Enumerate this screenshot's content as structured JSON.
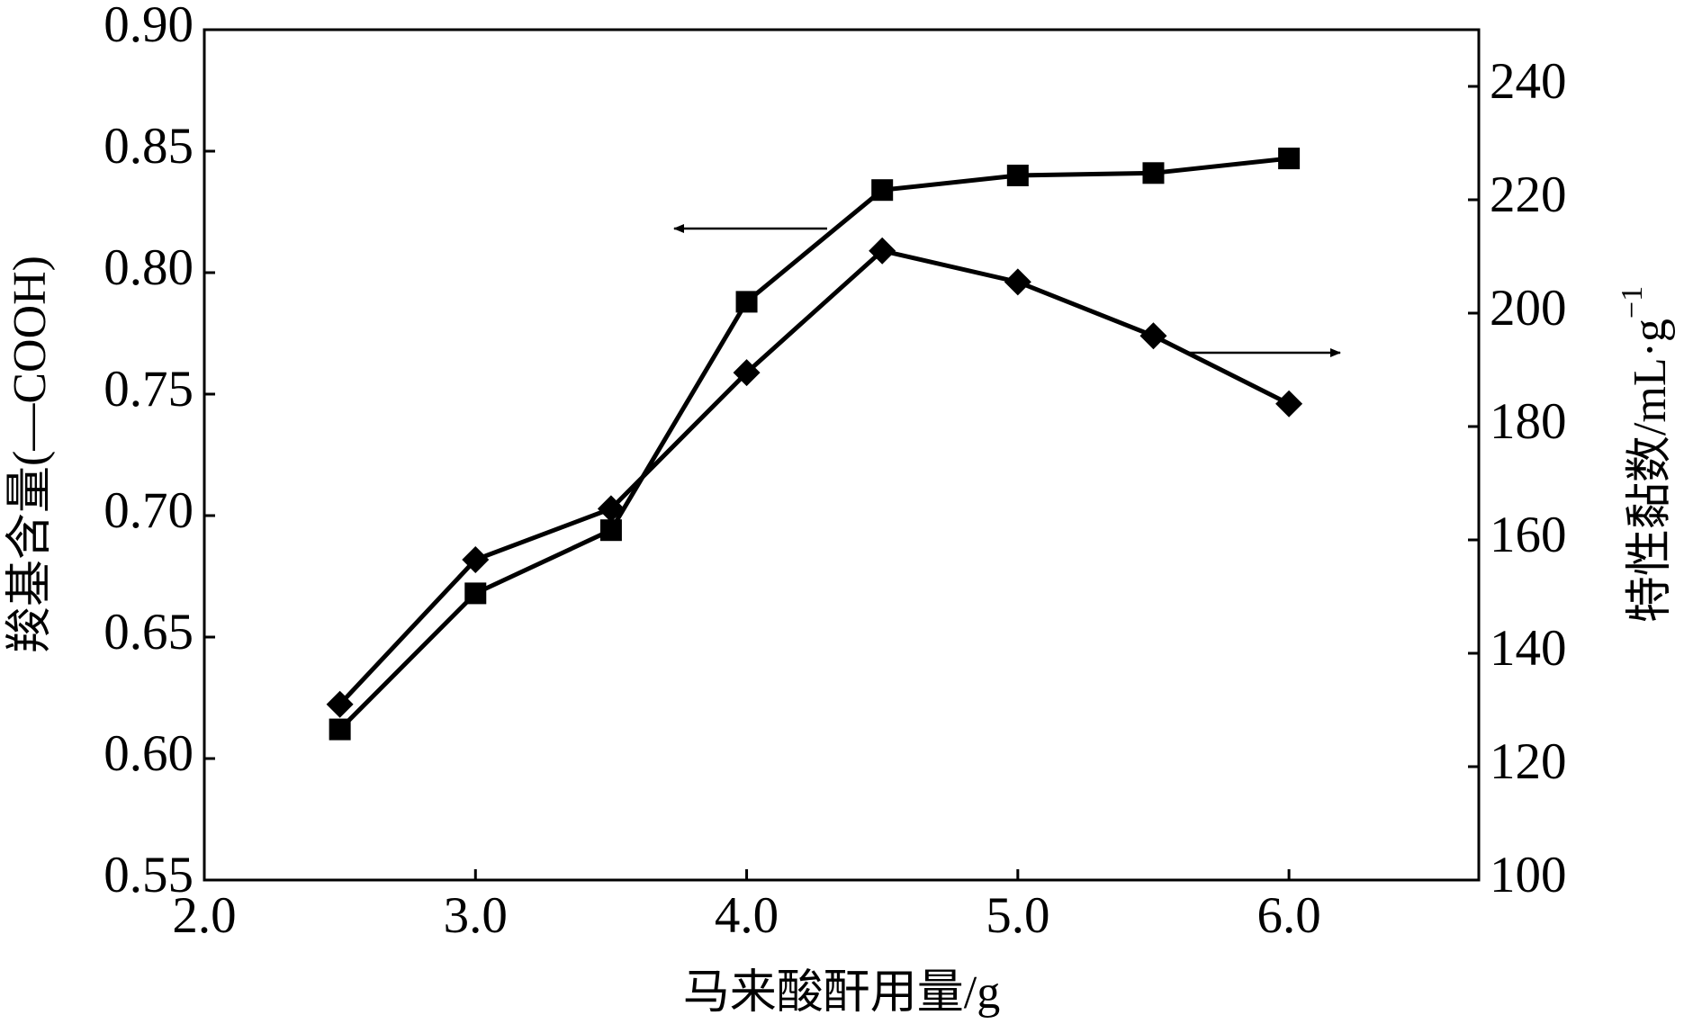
{
  "chart_data": {
    "type": "line",
    "xlabel": "马来酸酐用量/g",
    "ylabel": "羧基含量(—COOH)",
    "y2label": "特性黏数/mL·g",
    "y2label_sup": "−1",
    "x": [
      2.5,
      3.0,
      3.5,
      4.0,
      4.5,
      5.0,
      5.5,
      6.0
    ],
    "series": [
      {
        "marker": "square",
        "color": "#000000",
        "values": [
          0.612,
          0.668,
          0.694,
          0.788,
          0.834,
          0.84,
          0.841,
          0.847
        ]
      },
      {
        "marker": "diamond",
        "color": "#000000",
        "axis": "y2",
        "values": [
          131,
          156.5,
          165.5,
          189.5,
          211,
          205.5,
          196,
          184
        ]
      }
    ],
    "xlim": [
      2.0,
      6.7
    ],
    "xticks": [
      {
        "value": 2,
        "label": "2.0"
      },
      {
        "value": 3,
        "label": "3.0"
      },
      {
        "value": 4,
        "label": "4.0"
      },
      {
        "value": 5,
        "label": "5.0"
      },
      {
        "value": 6,
        "label": "6.0"
      }
    ],
    "ylim": [
      0.55,
      0.9
    ],
    "yticks": [
      {
        "value": 0.55,
        "label": "0.55"
      },
      {
        "value": 0.6,
        "label": "0.60"
      },
      {
        "value": 0.65,
        "label": "0.65"
      },
      {
        "value": 0.7,
        "label": "0.70"
      },
      {
        "value": 0.75,
        "label": "0.75"
      },
      {
        "value": 0.8,
        "label": "0.80"
      },
      {
        "value": 0.85,
        "label": "0.85"
      },
      {
        "value": 0.9,
        "label": "0.90"
      }
    ],
    "y2lim": [
      100,
      250
    ],
    "y2ticks": [
      100,
      120,
      140,
      160,
      180,
      200,
      220,
      240
    ],
    "grid": false
  }
}
